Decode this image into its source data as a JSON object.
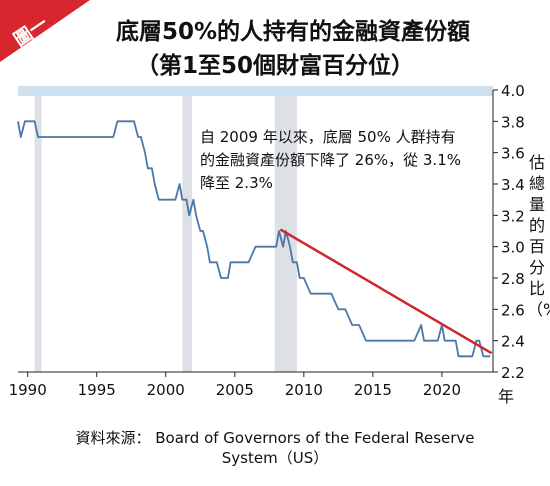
{
  "header": {
    "tag": "圖一",
    "title_line1": "底層50%的人持有的金融資產份額",
    "title_line2": "（第1至50個財富百分位）"
  },
  "annotation": "自 2009 年以來，底層 50% 人群持有的金融資產份額下降了 26%，從 3.1% 降至 2.3%",
  "source": {
    "line1": "資料來源： Board of Governors of the Federal Reserve",
    "line2": "System（US）"
  },
  "colors": {
    "series": "#4a77a8",
    "trend": "#d0272c",
    "recession_band": "#dde0e4",
    "top_band": "#cfe0ee",
    "tag": "#d7262d"
  },
  "chart_data": {
    "type": "line",
    "ylabel": "估總量的百分比（%）",
    "xlabel_unit": "年",
    "xlim": [
      1989.3,
      2023.7
    ],
    "ylim": [
      2.2,
      4.0
    ],
    "x_ticks": [
      "1990",
      "1995",
      "2000",
      "2005",
      "2010",
      "2015",
      "2020"
    ],
    "y_ticks": [
      "2.2",
      "2.4",
      "2.6",
      "2.8",
      "3.0",
      "3.2",
      "3.4",
      "3.6",
      "3.8",
      "4.0"
    ],
    "recession_bands": [
      [
        1990.5,
        1991.0
      ],
      [
        2001.2,
        2001.9
      ],
      [
        2007.9,
        2009.5
      ]
    ],
    "series": [
      {
        "x": [
          1989.3,
          1989.5,
          1989.8,
          1990.5,
          1990.75,
          1996.2,
          1996.5,
          1996.7,
          1997.0,
          1997.2,
          1997.5,
          1997.7,
          1998.0,
          1998.2,
          1998.5,
          1998.7,
          1999.0,
          1999.2,
          1999.5,
          1999.7,
          2000.0,
          2000.2,
          2000.5,
          2000.7,
          2001.0,
          2001.2,
          2001.5,
          2001.7,
          2002.0,
          2002.2,
          2002.5,
          2002.7,
          2003.0,
          2003.2,
          2003.5,
          2003.7,
          2004.0,
          2004.2,
          2004.5,
          2004.7,
          2005.0,
          2005.5,
          2006.0,
          2006.5,
          2007.0,
          2007.5,
          2008.0,
          2008.2,
          2008.5,
          2008.7,
          2009.0,
          2009.2,
          2009.5,
          2009.7,
          2010.0,
          2010.5,
          2011.0,
          2012.0,
          2012.5,
          2013.0,
          2013.5,
          2014.0,
          2014.5,
          2015.0,
          2015.5,
          2016.0,
          2017.0,
          2018.0,
          2018.5,
          2018.7,
          2019.0,
          2019.2,
          2019.5,
          2019.7,
          2020.0,
          2020.2,
          2020.5,
          2020.7,
          2021.0,
          2021.2,
          2021.5,
          2021.7,
          2022.0,
          2022.2,
          2022.5,
          2022.7,
          2023.0,
          2023.5
        ],
        "values": [
          3.8,
          3.7,
          3.8,
          3.8,
          3.7,
          3.7,
          3.8,
          3.8,
          3.8,
          3.8,
          3.8,
          3.8,
          3.7,
          3.7,
          3.6,
          3.5,
          3.5,
          3.4,
          3.3,
          3.3,
          3.3,
          3.3,
          3.3,
          3.3,
          3.4,
          3.3,
          3.3,
          3.2,
          3.3,
          3.2,
          3.1,
          3.1,
          3.0,
          2.9,
          2.9,
          2.9,
          2.8,
          2.8,
          2.8,
          2.9,
          2.9,
          2.9,
          2.9,
          3.0,
          3.0,
          3.0,
          3.0,
          3.1,
          3.0,
          3.1,
          3.0,
          2.9,
          2.9,
          2.8,
          2.8,
          2.7,
          2.7,
          2.7,
          2.6,
          2.6,
          2.5,
          2.5,
          2.4,
          2.4,
          2.4,
          2.4,
          2.4,
          2.4,
          2.5,
          2.4,
          2.4,
          2.4,
          2.4,
          2.4,
          2.5,
          2.4,
          2.4,
          2.4,
          2.4,
          2.3,
          2.3,
          2.3,
          2.3,
          2.3,
          2.4,
          2.4,
          2.3,
          2.3
        ]
      }
    ],
    "trendline": {
      "x": [
        2008.3,
        2023.6
      ],
      "values": [
        3.11,
        2.32
      ]
    }
  }
}
